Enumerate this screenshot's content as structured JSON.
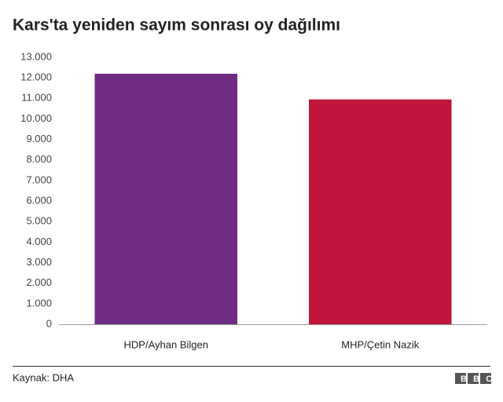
{
  "chart_data": {
    "type": "bar",
    "title": "Kars'ta yeniden sayım sonrası oy dağılımı",
    "categories": [
      "HDP/Ayhan Bilgen",
      "MHP/Çetin Nazik"
    ],
    "values": [
      12200,
      10950
    ],
    "colors": [
      "#6e2c82",
      "#c0163b"
    ],
    "ylim": [
      0,
      13000
    ],
    "yticks": [
      0,
      {
        "value": 1000,
        "label": "1.000"
      },
      {
        "value": 2000,
        "label": "2.000"
      },
      {
        "value": 3000,
        "label": "3.000"
      },
      {
        "value": 4000,
        "label": "4.000"
      },
      {
        "value": 5000,
        "label": "5.000"
      },
      {
        "value": 6000,
        "label": "6.000"
      },
      {
        "value": 7000,
        "label": "7.000"
      },
      {
        "value": 8000,
        "label": "8.000"
      },
      {
        "value": 9000,
        "label": "9.000"
      },
      {
        "value": 10000,
        "label": "10.000"
      },
      {
        "value": 11000,
        "label": "11.000"
      },
      {
        "value": 12000,
        "label": "12.000"
      },
      {
        "value": 13000,
        "label": "13.000"
      }
    ],
    "grid": false,
    "source": "Kaynak: DHA",
    "logo": "BBC"
  }
}
